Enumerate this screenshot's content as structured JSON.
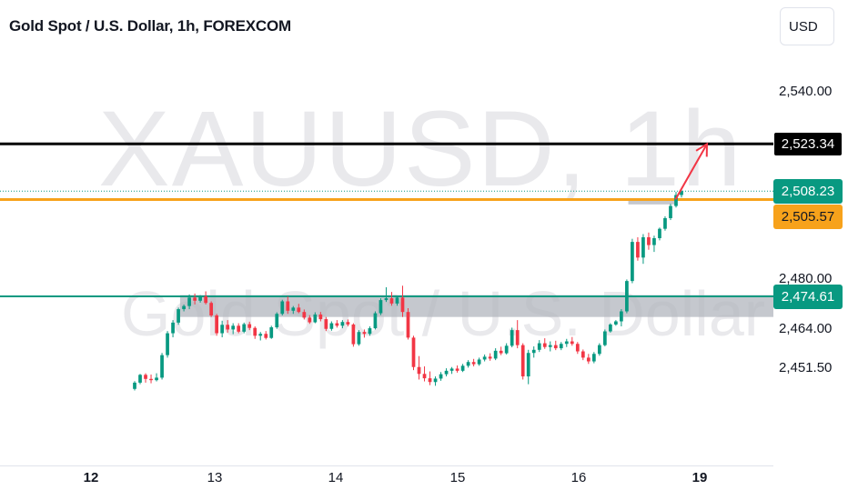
{
  "header": {
    "title": "Gold Spot / U.S. Dollar, 1h, FOREXCOM",
    "currency_button": "USD"
  },
  "watermark": {
    "symbol": "XAUUSD, 1h",
    "name": "Gold Spot / U.S. Dollar"
  },
  "chart_data": {
    "type": "candlestick",
    "symbol": "XAUUSD",
    "interval": "1h",
    "y_ticks": [
      {
        "value": 2540.0,
        "label": "2,540.00"
      },
      {
        "value": 2480.0,
        "label": "2,480.00"
      },
      {
        "value": 2464.0,
        "label": "2,464.00"
      },
      {
        "value": 2451.5,
        "label": "2,451.50"
      }
    ],
    "x_ticks": [
      {
        "label": "12",
        "bold": true,
        "x": 0
      },
      {
        "label": "13",
        "bold": false,
        "x": 1
      },
      {
        "label": "14",
        "bold": false,
        "x": 2
      },
      {
        "label": "15",
        "bold": false,
        "x": 3
      },
      {
        "label": "16",
        "bold": false,
        "x": 4
      },
      {
        "label": "19",
        "bold": true,
        "x": 5
      }
    ],
    "levels": [
      {
        "name": "resistance-target",
        "value": 2523.34,
        "label": "2,523.34",
        "color": "#000000",
        "label_bg": "#000000",
        "label_fg": "#ffffff"
      },
      {
        "name": "last-price",
        "value": 2508.23,
        "label": "2,508.23",
        "color": "#089981",
        "label_bg": "#089981",
        "label_fg": "#ffffff",
        "dotted": true
      },
      {
        "name": "breakout-level",
        "value": 2505.57,
        "label": "2,505.57",
        "color": "#f7a21b",
        "label_bg": "#f7a21b",
        "label_fg": "#131722"
      },
      {
        "name": "support-level",
        "value": 2474.61,
        "label": "2,474.61",
        "color": "#089981",
        "label_bg": "#089981",
        "label_fg": "#ffffff"
      }
    ],
    "zones": [
      {
        "name": "consolidation-zone",
        "x_start": 0.72,
        "x_end": 5.68,
        "y_low": 2468,
        "y_high": 2475
      },
      {
        "name": "retest-zone",
        "x_start": 4.41,
        "x_end": 4.8,
        "y_low": 2504,
        "y_high": 2506
      }
    ],
    "projection_arrow": {
      "from": {
        "x": 4.8,
        "y": 2505.6
      },
      "to": {
        "x": 5.06,
        "y": 2523.3
      },
      "color": "#f23645"
    },
    "up_color": "#089981",
    "down_color": "#f23645",
    "candles": [
      [
        2445.0,
        2447.5,
        2444.5,
        2447.0
      ],
      [
        2447.0,
        2449.8,
        2446.5,
        2449.5
      ],
      [
        2449.5,
        2450.0,
        2447.0,
        2448.2
      ],
      [
        2448.2,
        2449.6,
        2446.8,
        2447.8
      ],
      [
        2447.8,
        2450.0,
        2447.4,
        2448.6
      ],
      [
        2448.6,
        2456.5,
        2448.0,
        2455.8
      ],
      [
        2455.8,
        2463.5,
        2455.0,
        2462.8
      ],
      [
        2462.8,
        2467.0,
        2461.5,
        2466.2
      ],
      [
        2466.2,
        2471.0,
        2465.5,
        2470.5
      ],
      [
        2470.5,
        2472.0,
        2469.8,
        2471.5
      ],
      [
        2471.5,
        2475.2,
        2470.5,
        2474.2
      ],
      [
        2474.2,
        2475.5,
        2472.0,
        2473.2
      ],
      [
        2473.2,
        2475.0,
        2472.6,
        2474.6
      ],
      [
        2474.6,
        2476.2,
        2472.0,
        2472.5
      ],
      [
        2472.5,
        2473.0,
        2468.0,
        2468.5
      ],
      [
        2468.5,
        2469.0,
        2462.0,
        2462.8
      ],
      [
        2462.8,
        2466.8,
        2461.5,
        2465.5
      ],
      [
        2465.5,
        2467.0,
        2463.0,
        2464.0
      ],
      [
        2464.0,
        2466.0,
        2462.5,
        2465.2
      ],
      [
        2465.2,
        2466.0,
        2462.8,
        2463.3
      ],
      [
        2463.3,
        2466.2,
        2462.8,
        2465.7
      ],
      [
        2465.7,
        2466.5,
        2463.8,
        2464.5
      ],
      [
        2464.5,
        2465.0,
        2461.0,
        2462.0
      ],
      [
        2462.0,
        2463.2,
        2460.5,
        2462.6
      ],
      [
        2462.6,
        2463.5,
        2460.8,
        2461.3
      ],
      [
        2461.3,
        2465.2,
        2461.0,
        2464.7
      ],
      [
        2464.7,
        2469.5,
        2464.2,
        2469.0
      ],
      [
        2469.0,
        2473.5,
        2468.5,
        2473.0
      ],
      [
        2473.0,
        2474.6,
        2469.0,
        2470.0
      ],
      [
        2470.0,
        2471.5,
        2469.0,
        2471.0
      ],
      [
        2471.0,
        2472.2,
        2469.2,
        2469.6
      ],
      [
        2469.6,
        2470.4,
        2467.2,
        2467.8
      ],
      [
        2467.8,
        2468.6,
        2465.8,
        2466.3
      ],
      [
        2466.3,
        2469.5,
        2466.0,
        2468.8
      ],
      [
        2468.8,
        2469.6,
        2466.6,
        2467.3
      ],
      [
        2467.3,
        2468.0,
        2463.5,
        2464.2
      ],
      [
        2464.2,
        2466.6,
        2463.6,
        2466.0
      ],
      [
        2466.0,
        2467.0,
        2464.6,
        2465.2
      ],
      [
        2465.2,
        2467.0,
        2464.4,
        2466.4
      ],
      [
        2466.4,
        2467.2,
        2465.0,
        2465.6
      ],
      [
        2465.6,
        2466.0,
        2458.5,
        2459.3
      ],
      [
        2459.3,
        2463.8,
        2458.8,
        2463.2
      ],
      [
        2463.2,
        2464.0,
        2461.4,
        2462.6
      ],
      [
        2462.6,
        2465.0,
        2462.0,
        2464.4
      ],
      [
        2464.4,
        2469.8,
        2464.0,
        2469.2
      ],
      [
        2469.2,
        2474.0,
        2468.6,
        2473.4
      ],
      [
        2473.4,
        2477.5,
        2472.8,
        2474.0
      ],
      [
        2474.0,
        2476.0,
        2471.6,
        2472.3
      ],
      [
        2472.3,
        2474.6,
        2471.6,
        2474.2
      ],
      [
        2474.2,
        2478.0,
        2468.0,
        2469.6
      ],
      [
        2469.6,
        2470.8,
        2460.8,
        2461.4
      ],
      [
        2461.4,
        2462.0,
        2451.0,
        2452.0
      ],
      [
        2452.0,
        2455.5,
        2448.0,
        2449.8
      ],
      [
        2449.8,
        2452.2,
        2447.4,
        2448.4
      ],
      [
        2448.4,
        2450.6,
        2446.2,
        2447.2
      ],
      [
        2447.2,
        2449.0,
        2446.0,
        2448.3
      ],
      [
        2448.3,
        2450.4,
        2447.6,
        2449.7
      ],
      [
        2449.7,
        2451.6,
        2449.0,
        2450.8
      ],
      [
        2450.8,
        2452.0,
        2449.8,
        2451.5
      ],
      [
        2451.5,
        2452.5,
        2450.2,
        2450.8
      ],
      [
        2450.8,
        2453.0,
        2450.4,
        2452.4
      ],
      [
        2452.4,
        2454.2,
        2451.8,
        2453.6
      ],
      [
        2453.6,
        2454.6,
        2452.2,
        2452.9
      ],
      [
        2452.9,
        2455.0,
        2452.4,
        2454.4
      ],
      [
        2454.4,
        2456.0,
        2453.8,
        2455.3
      ],
      [
        2455.3,
        2456.4,
        2454.0,
        2454.7
      ],
      [
        2454.7,
        2458.0,
        2454.2,
        2457.2
      ],
      [
        2457.2,
        2458.5,
        2455.8,
        2456.4
      ],
      [
        2456.4,
        2459.6,
        2456.0,
        2458.8
      ],
      [
        2458.8,
        2464.6,
        2458.3,
        2463.8
      ],
      [
        2463.8,
        2467.0,
        2458.0,
        2459.0
      ],
      [
        2459.0,
        2459.6,
        2448.0,
        2449.0
      ],
      [
        2449.0,
        2457.5,
        2446.5,
        2456.5
      ],
      [
        2456.5,
        2458.6,
        2455.0,
        2457.5
      ],
      [
        2457.5,
        2460.6,
        2456.8,
        2459.6
      ],
      [
        2459.6,
        2461.2,
        2457.8,
        2458.4
      ],
      [
        2458.4,
        2460.2,
        2457.0,
        2459.0
      ],
      [
        2459.0,
        2460.4,
        2457.4,
        2458.0
      ],
      [
        2458.0,
        2460.0,
        2457.4,
        2459.4
      ],
      [
        2459.4,
        2461.0,
        2458.4,
        2460.2
      ],
      [
        2460.2,
        2461.6,
        2458.8,
        2459.4
      ],
      [
        2459.4,
        2460.0,
        2456.2,
        2457.0
      ],
      [
        2457.0,
        2457.6,
        2454.2,
        2455.0
      ],
      [
        2455.0,
        2456.2,
        2453.0,
        2453.8
      ],
      [
        2453.8,
        2456.8,
        2453.2,
        2456.2
      ],
      [
        2456.2,
        2459.6,
        2455.6,
        2459.0
      ],
      [
        2459.0,
        2464.0,
        2458.6,
        2463.4
      ],
      [
        2463.4,
        2466.0,
        2463.0,
        2465.6
      ],
      [
        2465.6,
        2467.0,
        2465.2,
        2466.6
      ],
      [
        2466.6,
        2470.5,
        2465.0,
        2469.8
      ],
      [
        2469.8,
        2480.0,
        2469.2,
        2479.5
      ],
      [
        2479.5,
        2493.0,
        2478.8,
        2492.0
      ],
      [
        2492.0,
        2493.5,
        2486.0,
        2487.0
      ],
      [
        2487.0,
        2494.5,
        2485.0,
        2493.5
      ],
      [
        2493.5,
        2495.0,
        2489.5,
        2491.0
      ],
      [
        2491.0,
        2494.0,
        2488.8,
        2493.2
      ],
      [
        2493.2,
        2496.6,
        2492.5,
        2496.2
      ],
      [
        2496.2,
        2500.2,
        2495.6,
        2499.6
      ],
      [
        2499.6,
        2504.2,
        2499.0,
        2503.5
      ],
      [
        2503.5,
        2508.0,
        2503.0,
        2507.0
      ],
      [
        2507.0,
        2509.0,
        2506.2,
        2508.23
      ]
    ]
  }
}
